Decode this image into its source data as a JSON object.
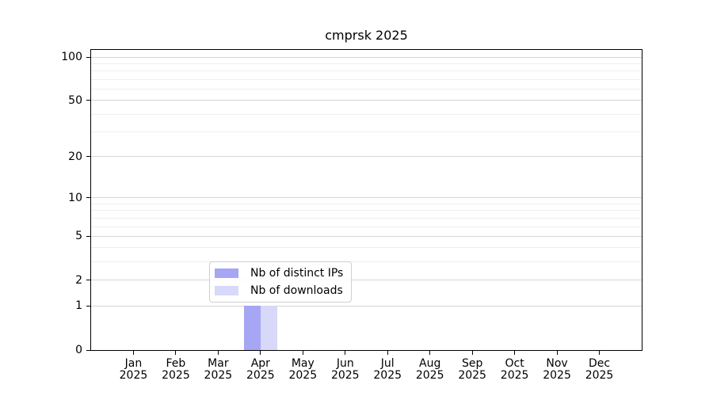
{
  "chart_data": {
    "type": "bar",
    "title": "cmprsk 2025",
    "year": "2025",
    "months": [
      "Jan",
      "Feb",
      "Mar",
      "Apr",
      "May",
      "Jun",
      "Jul",
      "Aug",
      "Sep",
      "Oct",
      "Nov",
      "Dec"
    ],
    "categories": [
      "Jan 2025",
      "Feb 2025",
      "Mar 2025",
      "Apr 2025",
      "May 2025",
      "Jun 2025",
      "Jul 2025",
      "Aug 2025",
      "Sep 2025",
      "Oct 2025",
      "Nov 2025",
      "Dec 2025"
    ],
    "series": [
      {
        "key": "distinct-ips",
        "name": "Nb of distinct IPs",
        "color": "#a6a6f4",
        "values": [
          0,
          0,
          0,
          1,
          0,
          0,
          0,
          0,
          0,
          0,
          0,
          0
        ]
      },
      {
        "key": "downloads",
        "name": "Nb of downloads",
        "color": "#d8d8f8",
        "values": [
          0,
          0,
          0,
          1,
          0,
          0,
          0,
          0,
          0,
          0,
          0,
          0
        ]
      }
    ],
    "xlabel": "",
    "ylabel": "",
    "yscale": "log1p",
    "ylim": [
      0,
      112
    ],
    "y_major_ticks": [
      0,
      1,
      2,
      5,
      10,
      20,
      50,
      100
    ],
    "y_minor_ticks": [
      3,
      4,
      6,
      7,
      8,
      9,
      30,
      40,
      60,
      70,
      80,
      90
    ],
    "grid": true,
    "legend_position": "lower center",
    "colors": {
      "grid_major": "#d6d6d6",
      "grid_minor": "#efefef",
      "spine": "#000000",
      "legend_border": "#cfcfcf",
      "background": "#ffffff"
    }
  }
}
